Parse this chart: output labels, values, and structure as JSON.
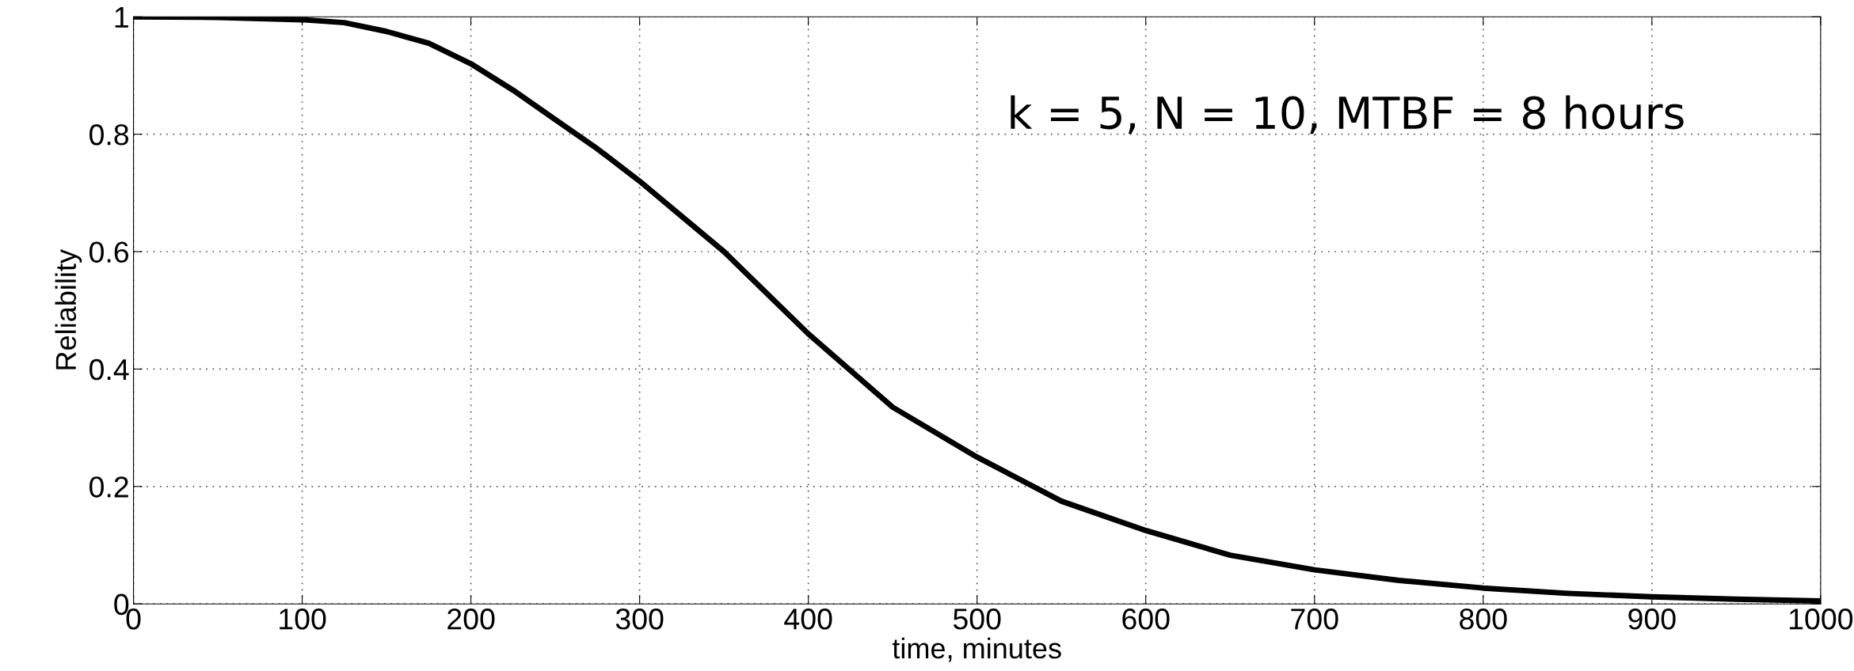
{
  "chart_data": {
    "type": "line",
    "xlabel": "time, minutes",
    "ylabel": "Reliability",
    "annotations": [
      "k = 5, N = 10, MTBF = 8 hours"
    ],
    "x": [
      0,
      50,
      100,
      125,
      150,
      175,
      200,
      225,
      250,
      275,
      300,
      325,
      350,
      375,
      400,
      450,
      500,
      550,
      600,
      650,
      700,
      750,
      800,
      850,
      900,
      950,
      1000
    ],
    "series": [
      {
        "color": "#000000",
        "values": [
          1.0,
          0.999,
          0.995,
          0.99,
          0.975,
          0.955,
          0.92,
          0.875,
          0.825,
          0.775,
          0.72,
          0.66,
          0.6,
          0.53,
          0.46,
          0.335,
          0.25,
          0.175,
          0.125,
          0.083,
          0.058,
          0.04,
          0.027,
          0.018,
          0.012,
          0.008,
          0.005
        ]
      }
    ],
    "xlim": [
      0,
      1000
    ],
    "xticks": [
      0,
      100,
      200,
      300,
      400,
      500,
      600,
      700,
      800,
      900,
      1000
    ],
    "ylim": [
      0,
      1
    ],
    "yticks": [
      0,
      0.2,
      0.4,
      0.6,
      0.8,
      1
    ],
    "grid": true,
    "line_style": "solid"
  }
}
